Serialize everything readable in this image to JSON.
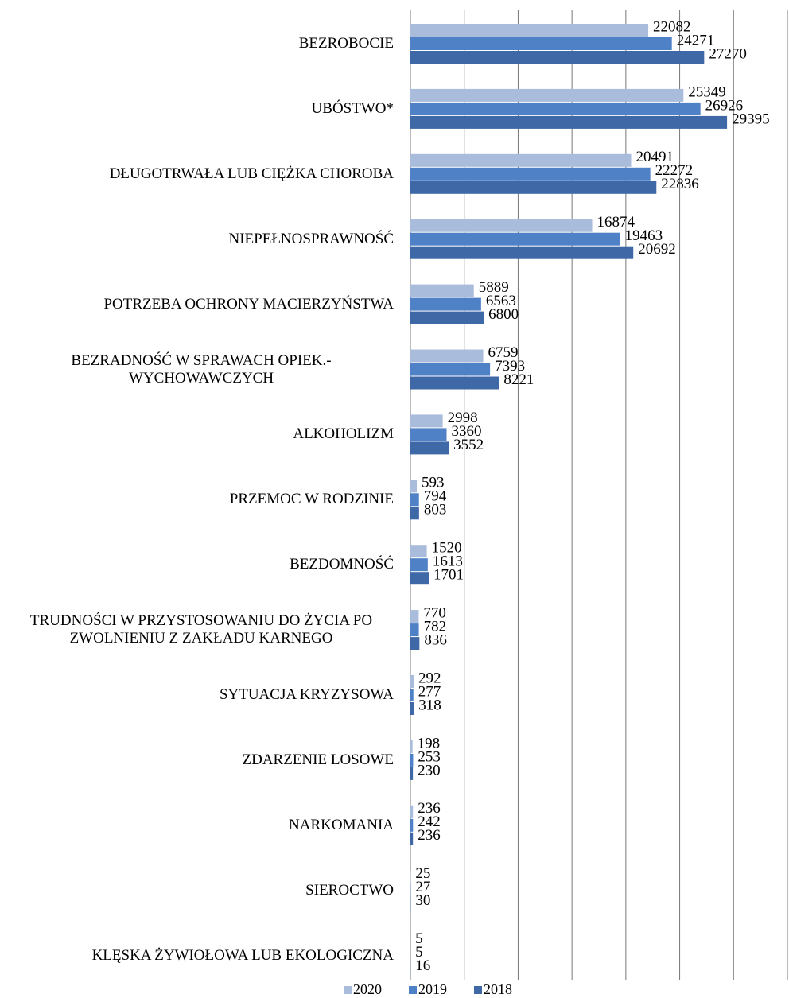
{
  "chart_data": {
    "type": "bar",
    "orientation": "horizontal",
    "categories": [
      "BEZROBOCIE",
      "UBÓSTWO*",
      "DŁUGOTRWAŁA LUB CIĘŻKA CHOROBA",
      "NIEPEŁNOSPRAWNOŚĆ",
      "POTRZEBA OCHRONY MACIERZYŃSTWA",
      "BEZRADNOŚĆ W SPRAWACH OPIEK.- WYCHOWAWCZYCH",
      "ALKOHOLIZM",
      "PRZEMOC W RODZINIE",
      "BEZDOMNOŚĆ",
      "TRUDNOŚCI W PRZYSTOSOWANIU DO ŻYCIA PO ZWOLNIENIU Z ZAKŁADU KARNEGO",
      "SYTUACJA KRYZYSOWA",
      "ZDARZENIE LOSOWE",
      "NARKOMANIA",
      "SIEROCTWO",
      "KLĘSKA ŻYWIOŁOWA LUB EKOLOGICZNA"
    ],
    "series": [
      {
        "name": "2020",
        "color": "#a9bcdb",
        "values": [
          22082,
          25349,
          20491,
          16874,
          5889,
          6759,
          2998,
          593,
          1520,
          770,
          292,
          198,
          236,
          25,
          5
        ]
      },
      {
        "name": "2019",
        "color": "#4f81c7",
        "values": [
          24271,
          26926,
          22272,
          19463,
          6563,
          7393,
          3360,
          794,
          1613,
          782,
          277,
          253,
          242,
          27,
          5
        ]
      },
      {
        "name": "2018",
        "color": "#3f68a6",
        "values": [
          27270,
          29395,
          22836,
          20692,
          6800,
          8221,
          3552,
          803,
          1701,
          836,
          318,
          230,
          236,
          30,
          16
        ]
      }
    ],
    "xlim": [
      0,
      35000
    ],
    "xticks": [
      0,
      5000,
      10000,
      15000,
      20000,
      25000,
      30000,
      35000
    ],
    "grid": true,
    "legend": "bottom"
  }
}
